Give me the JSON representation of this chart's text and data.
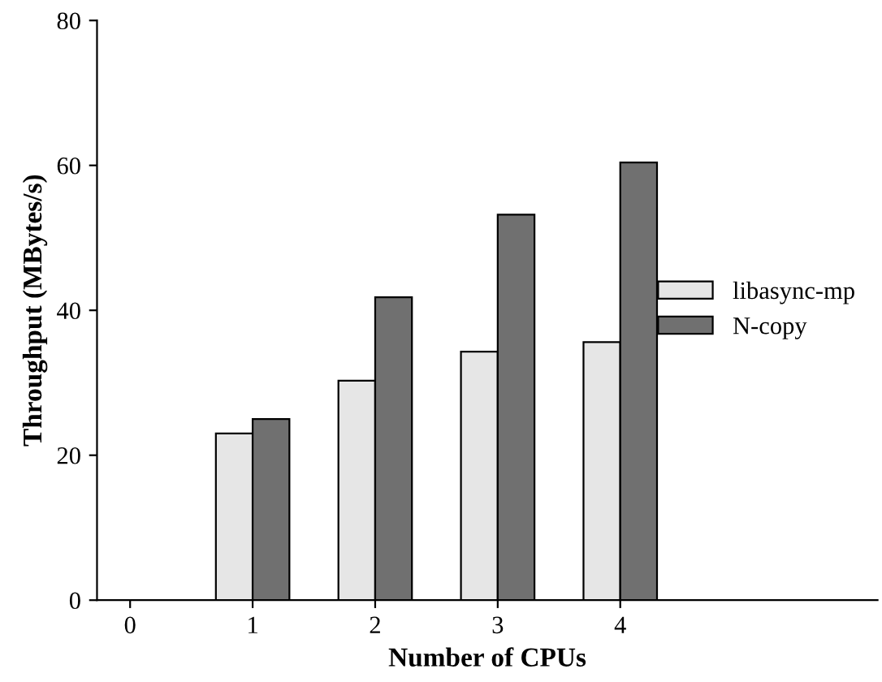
{
  "chart_data": {
    "type": "bar",
    "xlabel": "Number of CPUs",
    "ylabel": "Throughput (MBytes/s)",
    "categories": [
      "0",
      "1",
      "2",
      "3",
      "4"
    ],
    "series": [
      {
        "name": "libasync-mp",
        "color": "#e6e6e6",
        "values": [
          null,
          23,
          30.3,
          34.3,
          35.6
        ]
      },
      {
        "name": "N-copy",
        "color": "#707070",
        "values": [
          null,
          25,
          41.8,
          53.2,
          60.4
        ]
      }
    ],
    "ylim": [
      0,
      80
    ],
    "yticks": [
      0,
      20,
      40,
      60,
      80
    ],
    "grid": false,
    "legend": "right"
  }
}
